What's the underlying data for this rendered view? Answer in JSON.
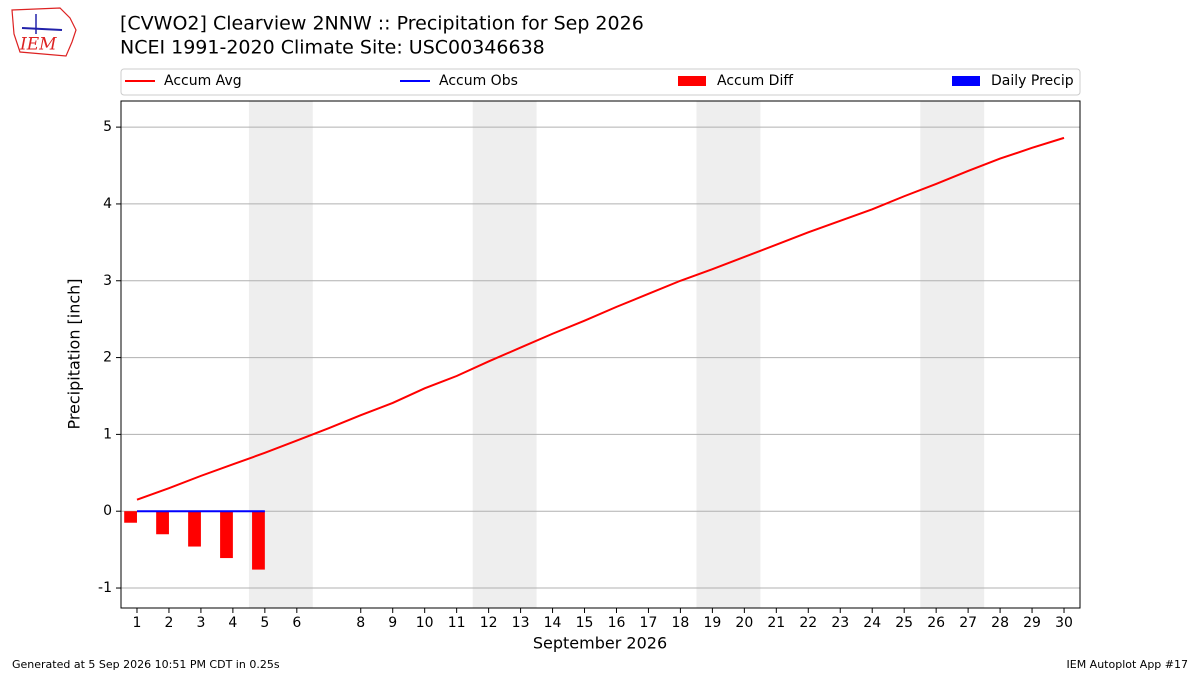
{
  "logo": "IEM",
  "chart_data": {
    "type": "line",
    "title": "[CVWO2] Clearview 2NNW :: Precipitation for Sep 2026",
    "subtitle": "NCEI 1991-2020 Climate Site: USC00346638",
    "x_label": "September 2026",
    "y_label": "Precipitation [inch]",
    "x": [
      1,
      2,
      3,
      4,
      5,
      6,
      7,
      8,
      9,
      10,
      11,
      12,
      13,
      14,
      15,
      16,
      17,
      18,
      19,
      20,
      21,
      22,
      23,
      24,
      25,
      26,
      27,
      28,
      29,
      30
    ],
    "series": [
      {
        "name": "Accum Avg",
        "type": "line",
        "color": "#ff0000",
        "values": [
          0.15,
          0.3,
          0.46,
          0.61,
          0.76,
          0.92,
          1.08,
          1.25,
          1.41,
          1.6,
          1.76,
          1.95,
          2.13,
          2.31,
          2.48,
          2.66,
          2.83,
          3.0,
          3.15,
          3.31,
          3.47,
          3.63,
          3.78,
          3.93,
          4.1,
          4.26,
          4.43,
          4.59,
          4.73,
          4.86
        ]
      },
      {
        "name": "Accum Obs",
        "type": "line",
        "color": "#0000ff",
        "values": [
          0,
          0,
          0,
          0,
          0,
          null,
          null,
          null,
          null,
          null,
          null,
          null,
          null,
          null,
          null,
          null,
          null,
          null,
          null,
          null,
          null,
          null,
          null,
          null,
          null,
          null,
          null,
          null,
          null,
          null
        ]
      },
      {
        "name": "Accum Diff",
        "type": "bar",
        "color": "#ff0000",
        "values": [
          -0.15,
          -0.3,
          -0.46,
          -0.61,
          -0.76,
          null,
          null,
          null,
          null,
          null,
          null,
          null,
          null,
          null,
          null,
          null,
          null,
          null,
          null,
          null,
          null,
          null,
          null,
          null,
          null,
          null,
          null,
          null,
          null,
          null
        ]
      },
      {
        "name": "Daily Precip",
        "type": "bar",
        "color": "#0000ff",
        "values": [
          0,
          0,
          0,
          0,
          0,
          null,
          null,
          null,
          null,
          null,
          null,
          null,
          null,
          null,
          null,
          null,
          null,
          null,
          null,
          null,
          null,
          null,
          null,
          null,
          null,
          null,
          null,
          null,
          null,
          null
        ]
      }
    ],
    "xlim": [
      0.5,
      30.5
    ],
    "xticks": [
      1,
      2,
      3,
      4,
      5,
      6,
      8,
      9,
      10,
      11,
      12,
      13,
      14,
      15,
      16,
      17,
      18,
      19,
      20,
      21,
      22,
      23,
      24,
      25,
      26,
      27,
      28,
      29,
      30
    ],
    "ylim": [
      -1.26,
      5.34
    ],
    "yticks": [
      -1,
      0,
      1,
      2,
      3,
      4,
      5
    ],
    "grid": true,
    "legend": "top",
    "footer_left": "Generated at 5 Sep 2026 10:51 PM CDT in 0.25s",
    "footer_right": "IEM Autoplot App #17"
  }
}
